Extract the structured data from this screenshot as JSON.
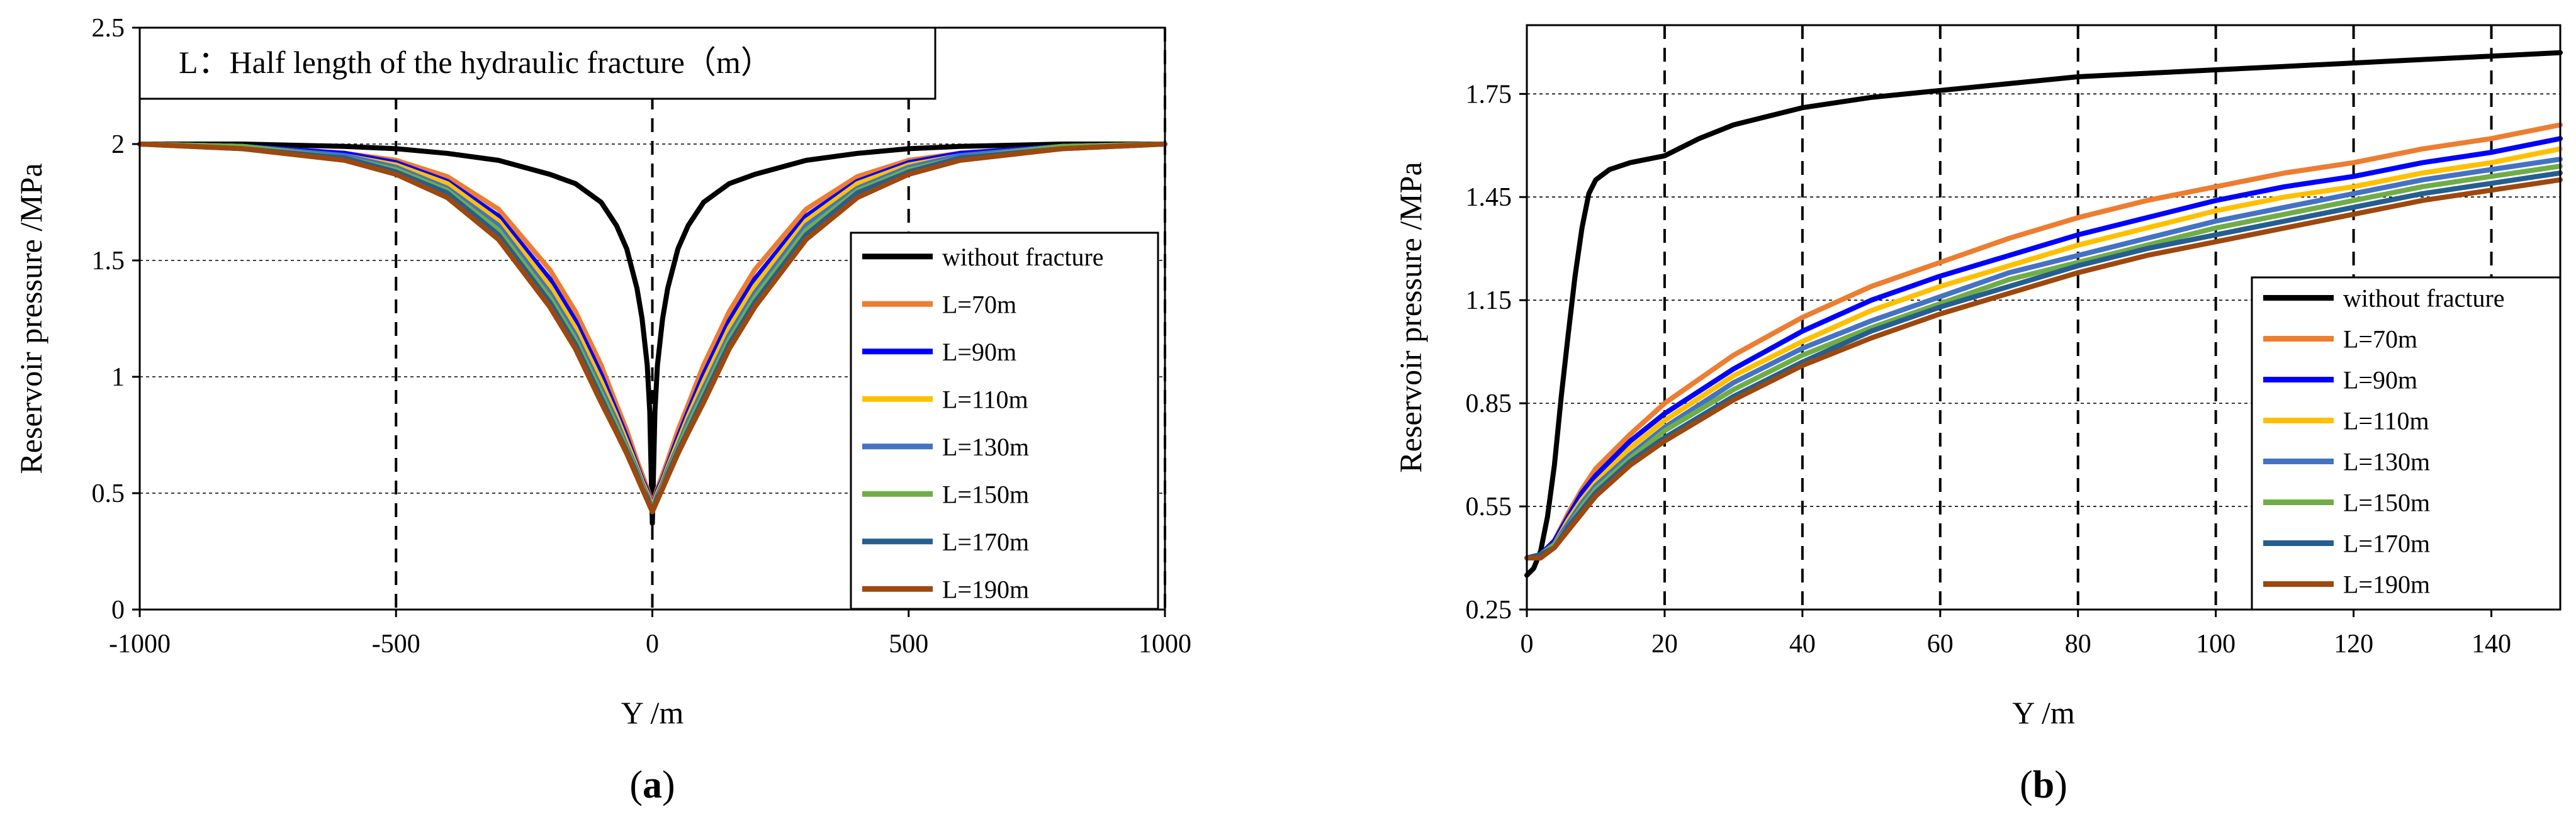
{
  "chart_data": [
    {
      "type": "line",
      "panel_label": "a",
      "annotation": "L：Half length of the hydraulic fracture（m）",
      "xlabel": "Y /m",
      "ylabel": "Reservoir pressure /MPa",
      "xlim": [
        -1000,
        1000
      ],
      "ylim": [
        0,
        2.5
      ],
      "xticks": [
        -1000,
        -500,
        0,
        500,
        1000
      ],
      "yticks": [
        0,
        0.5,
        1,
        1.5,
        2,
        2.5
      ],
      "x_dashed_gridlines": [
        -500,
        0,
        500,
        1000
      ],
      "y_dotted_gridlines": [
        0.5,
        1,
        1.5,
        2
      ],
      "legend_position": "right",
      "series": [
        {
          "name": "without fracture",
          "color": "#000000",
          "x": [
            -1000,
            -800,
            -600,
            -500,
            -400,
            -300,
            -200,
            -150,
            -100,
            -70,
            -50,
            -30,
            -20,
            -10,
            -5,
            0,
            5,
            10,
            20,
            30,
            50,
            70,
            100,
            150,
            200,
            300,
            400,
            500,
            600,
            800,
            1000
          ],
          "y": [
            2.0,
            2.0,
            1.99,
            1.98,
            1.96,
            1.93,
            1.87,
            1.83,
            1.75,
            1.65,
            1.55,
            1.38,
            1.25,
            1.05,
            0.85,
            0.37,
            0.85,
            1.05,
            1.25,
            1.38,
            1.55,
            1.65,
            1.75,
            1.83,
            1.87,
            1.93,
            1.96,
            1.98,
            1.99,
            2.0,
            2.0
          ]
        },
        {
          "name": "L=70m",
          "color": "#ED7D31",
          "x": [
            -1000,
            -800,
            -600,
            -500,
            -400,
            -300,
            -200,
            -150,
            -100,
            -70,
            -50,
            -30,
            -20,
            -10,
            0,
            10,
            20,
            30,
            50,
            70,
            100,
            150,
            200,
            300,
            400,
            500,
            600,
            800,
            1000
          ],
          "y": [
            2.0,
            1.99,
            1.96,
            1.93,
            1.86,
            1.72,
            1.46,
            1.28,
            1.05,
            0.88,
            0.77,
            0.64,
            0.58,
            0.52,
            0.45,
            0.52,
            0.58,
            0.64,
            0.77,
            0.88,
            1.05,
            1.28,
            1.46,
            1.72,
            1.86,
            1.93,
            1.96,
            1.99,
            2.0
          ]
        },
        {
          "name": "L=90m",
          "color": "#0000FF",
          "x": [
            -1000,
            -800,
            -600,
            -500,
            -400,
            -300,
            -200,
            -150,
            -100,
            -70,
            -50,
            -30,
            -20,
            -10,
            0,
            10,
            20,
            30,
            50,
            70,
            100,
            150,
            200,
            300,
            400,
            500,
            600,
            800,
            1000
          ],
          "y": [
            2.0,
            1.99,
            1.96,
            1.92,
            1.84,
            1.69,
            1.42,
            1.24,
            1.01,
            0.85,
            0.74,
            0.62,
            0.56,
            0.51,
            0.44,
            0.51,
            0.56,
            0.62,
            0.74,
            0.85,
            1.01,
            1.24,
            1.42,
            1.69,
            1.84,
            1.92,
            1.96,
            1.99,
            2.0
          ]
        },
        {
          "name": "L=110m",
          "color": "#FFC000",
          "x": [
            -1000,
            -800,
            -600,
            -500,
            -400,
            -300,
            -200,
            -150,
            -100,
            -70,
            -50,
            -30,
            -20,
            -10,
            0,
            10,
            20,
            30,
            50,
            70,
            100,
            150,
            200,
            300,
            400,
            500,
            600,
            800,
            1000
          ],
          "y": [
            2.0,
            1.99,
            1.95,
            1.91,
            1.83,
            1.67,
            1.39,
            1.21,
            0.98,
            0.83,
            0.72,
            0.61,
            0.55,
            0.5,
            0.44,
            0.5,
            0.55,
            0.61,
            0.72,
            0.83,
            0.98,
            1.21,
            1.39,
            1.67,
            1.83,
            1.91,
            1.95,
            1.99,
            2.0
          ]
        },
        {
          "name": "L=130m",
          "color": "#4472C4",
          "x": [
            -1000,
            -800,
            -600,
            -500,
            -400,
            -300,
            -200,
            -150,
            -100,
            -70,
            -50,
            -30,
            -20,
            -10,
            0,
            10,
            20,
            30,
            50,
            70,
            100,
            150,
            200,
            300,
            400,
            500,
            600,
            800,
            1000
          ],
          "y": [
            2.0,
            1.99,
            1.95,
            1.9,
            1.81,
            1.65,
            1.36,
            1.18,
            0.95,
            0.81,
            0.7,
            0.6,
            0.54,
            0.49,
            0.43,
            0.49,
            0.54,
            0.6,
            0.7,
            0.81,
            0.95,
            1.18,
            1.36,
            1.65,
            1.81,
            1.9,
            1.95,
            1.99,
            2.0
          ]
        },
        {
          "name": "L=150m",
          "color": "#70AD47",
          "x": [
            -1000,
            -800,
            -600,
            -500,
            -400,
            -300,
            -200,
            -150,
            -100,
            -70,
            -50,
            -30,
            -20,
            -10,
            0,
            10,
            20,
            30,
            50,
            70,
            100,
            150,
            200,
            300,
            400,
            500,
            600,
            800,
            1000
          ],
          "y": [
            2.0,
            1.99,
            1.94,
            1.89,
            1.8,
            1.63,
            1.34,
            1.16,
            0.93,
            0.79,
            0.69,
            0.59,
            0.53,
            0.48,
            0.43,
            0.48,
            0.53,
            0.59,
            0.69,
            0.79,
            0.93,
            1.16,
            1.34,
            1.63,
            1.8,
            1.89,
            1.94,
            1.99,
            2.0
          ]
        },
        {
          "name": "L=170m",
          "color": "#255E91",
          "x": [
            -1000,
            -800,
            -600,
            -500,
            -400,
            -300,
            -200,
            -150,
            -100,
            -70,
            -50,
            -30,
            -20,
            -10,
            0,
            10,
            20,
            30,
            50,
            70,
            100,
            150,
            200,
            300,
            400,
            500,
            600,
            800,
            1000
          ],
          "y": [
            2.0,
            1.98,
            1.94,
            1.88,
            1.79,
            1.61,
            1.32,
            1.14,
            0.91,
            0.77,
            0.68,
            0.58,
            0.52,
            0.48,
            0.42,
            0.48,
            0.52,
            0.58,
            0.68,
            0.77,
            0.91,
            1.14,
            1.32,
            1.61,
            1.79,
            1.88,
            1.94,
            1.98,
            2.0
          ]
        },
        {
          "name": "L=190m",
          "color": "#9E480E",
          "x": [
            -1000,
            -800,
            -600,
            -500,
            -400,
            -300,
            -200,
            -150,
            -100,
            -70,
            -50,
            -30,
            -20,
            -10,
            0,
            10,
            20,
            30,
            50,
            70,
            100,
            150,
            200,
            300,
            400,
            500,
            600,
            800,
            1000
          ],
          "y": [
            2.0,
            1.98,
            1.93,
            1.87,
            1.77,
            1.59,
            1.3,
            1.12,
            0.89,
            0.76,
            0.67,
            0.57,
            0.52,
            0.47,
            0.42,
            0.47,
            0.52,
            0.57,
            0.67,
            0.76,
            0.89,
            1.12,
            1.3,
            1.59,
            1.77,
            1.87,
            1.93,
            1.98,
            2.0
          ]
        }
      ]
    },
    {
      "type": "line",
      "panel_label": "b",
      "xlabel": "Y /m",
      "ylabel": "Reservoir pressure /MPa",
      "xlim": [
        0,
        150
      ],
      "ylim": [
        0.25,
        1.95
      ],
      "xticks": [
        0,
        20,
        40,
        60,
        80,
        100,
        120,
        140
      ],
      "yticks": [
        0.25,
        0.55,
        0.85,
        1.15,
        1.45,
        1.75
      ],
      "x_dashed_gridlines": [
        20,
        40,
        60,
        80,
        100,
        120,
        140
      ],
      "y_dotted_gridlines": [
        0.55,
        0.85,
        1.15,
        1.45,
        1.75
      ],
      "legend_position": "bottom-right",
      "series": [
        {
          "name": "without fracture",
          "color": "#000000",
          "x": [
            0,
            1,
            2,
            3,
            4,
            5,
            6,
            7,
            8,
            9,
            10,
            12,
            15,
            20,
            25,
            30,
            40,
            50,
            60,
            70,
            80,
            90,
            100,
            110,
            120,
            130,
            140,
            150
          ],
          "y": [
            0.35,
            0.37,
            0.42,
            0.52,
            0.67,
            0.87,
            1.05,
            1.22,
            1.36,
            1.46,
            1.5,
            1.53,
            1.55,
            1.57,
            1.62,
            1.66,
            1.71,
            1.74,
            1.76,
            1.78,
            1.8,
            1.81,
            1.82,
            1.83,
            1.84,
            1.85,
            1.86,
            1.87
          ]
        },
        {
          "name": "L=70m",
          "color": "#ED7D31",
          "x": [
            0,
            2,
            4,
            6,
            8,
            10,
            15,
            20,
            30,
            40,
            50,
            60,
            70,
            80,
            90,
            100,
            110,
            120,
            130,
            140,
            150
          ],
          "y": [
            0.4,
            0.41,
            0.45,
            0.53,
            0.6,
            0.66,
            0.76,
            0.85,
            0.99,
            1.1,
            1.19,
            1.26,
            1.33,
            1.39,
            1.44,
            1.48,
            1.52,
            1.55,
            1.59,
            1.62,
            1.66
          ]
        },
        {
          "name": "L=90m",
          "color": "#0000FF",
          "x": [
            0,
            2,
            4,
            6,
            8,
            10,
            15,
            20,
            30,
            40,
            50,
            60,
            70,
            80,
            90,
            100,
            110,
            120,
            130,
            140,
            150
          ],
          "y": [
            0.4,
            0.41,
            0.45,
            0.52,
            0.59,
            0.64,
            0.74,
            0.82,
            0.95,
            1.06,
            1.15,
            1.22,
            1.28,
            1.34,
            1.39,
            1.44,
            1.48,
            1.51,
            1.55,
            1.58,
            1.62
          ]
        },
        {
          "name": "L=110m",
          "color": "#FFC000",
          "x": [
            0,
            2,
            4,
            6,
            8,
            10,
            15,
            20,
            30,
            40,
            50,
            60,
            70,
            80,
            90,
            100,
            110,
            120,
            130,
            140,
            150
          ],
          "y": [
            0.4,
            0.41,
            0.44,
            0.51,
            0.57,
            0.62,
            0.72,
            0.8,
            0.93,
            1.03,
            1.12,
            1.19,
            1.25,
            1.31,
            1.36,
            1.41,
            1.45,
            1.48,
            1.52,
            1.55,
            1.59
          ]
        },
        {
          "name": "L=130m",
          "color": "#4472C4",
          "x": [
            0,
            2,
            4,
            6,
            8,
            10,
            15,
            20,
            30,
            40,
            50,
            60,
            70,
            80,
            90,
            100,
            110,
            120,
            130,
            140,
            150
          ],
          "y": [
            0.4,
            0.41,
            0.44,
            0.5,
            0.56,
            0.61,
            0.7,
            0.78,
            0.91,
            1.01,
            1.09,
            1.16,
            1.23,
            1.28,
            1.33,
            1.38,
            1.42,
            1.46,
            1.5,
            1.53,
            1.56
          ]
        },
        {
          "name": "L=150m",
          "color": "#70AD47",
          "x": [
            0,
            2,
            4,
            6,
            8,
            10,
            15,
            20,
            30,
            40,
            50,
            60,
            70,
            80,
            90,
            100,
            110,
            120,
            130,
            140,
            150
          ],
          "y": [
            0.4,
            0.41,
            0.44,
            0.49,
            0.55,
            0.6,
            0.69,
            0.77,
            0.89,
            0.99,
            1.07,
            1.14,
            1.21,
            1.26,
            1.31,
            1.36,
            1.4,
            1.44,
            1.48,
            1.51,
            1.54
          ]
        },
        {
          "name": "L=170m",
          "color": "#255E91",
          "x": [
            0,
            2,
            4,
            6,
            8,
            10,
            15,
            20,
            30,
            40,
            50,
            60,
            70,
            80,
            90,
            100,
            110,
            120,
            130,
            140,
            150
          ],
          "y": [
            0.4,
            0.41,
            0.43,
            0.49,
            0.54,
            0.59,
            0.68,
            0.75,
            0.87,
            0.97,
            1.06,
            1.13,
            1.19,
            1.25,
            1.3,
            1.34,
            1.38,
            1.42,
            1.46,
            1.49,
            1.52
          ]
        },
        {
          "name": "L=190m",
          "color": "#9E480E",
          "x": [
            0,
            2,
            4,
            6,
            8,
            10,
            15,
            20,
            30,
            40,
            50,
            60,
            70,
            80,
            90,
            100,
            110,
            120,
            130,
            140,
            150
          ],
          "y": [
            0.4,
            0.4,
            0.43,
            0.48,
            0.53,
            0.58,
            0.67,
            0.74,
            0.86,
            0.96,
            1.04,
            1.11,
            1.17,
            1.23,
            1.28,
            1.32,
            1.36,
            1.4,
            1.44,
            1.47,
            1.5
          ]
        }
      ]
    }
  ]
}
